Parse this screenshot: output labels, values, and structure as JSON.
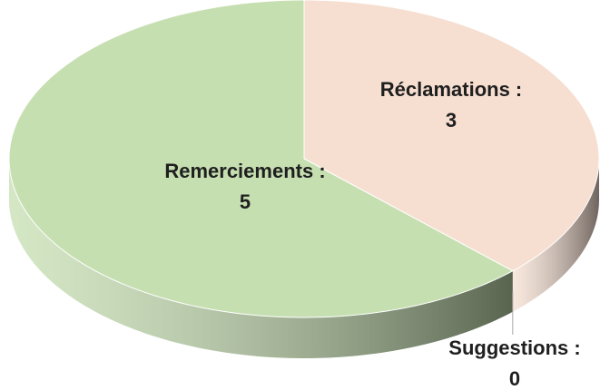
{
  "chart_data": {
    "type": "pie",
    "categories": [
      "Réclamations :",
      "Suggestions :",
      "Remerciements :"
    ],
    "values": [
      3,
      0,
      5
    ],
    "colors": [
      "#f6dfd1",
      "#b9cfe8",
      "#c6dfb1"
    ]
  }
}
